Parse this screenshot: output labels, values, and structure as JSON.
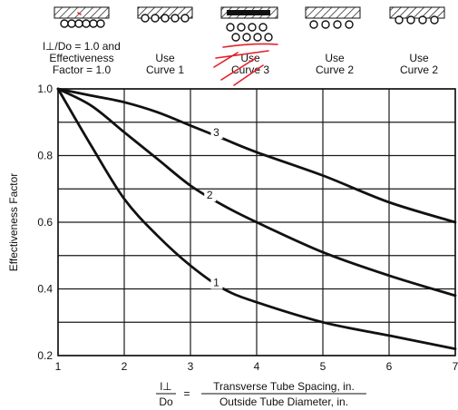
{
  "chart_data": {
    "type": "line",
    "xlabel_numerator": "l⊥",
    "xlabel_denominator": "Do",
    "xlabel_equals": "=",
    "xlabel_text_numerator": "Transverse Tube Spacing, in.",
    "xlabel_text_denominator": "Outside Tube Diameter, in.",
    "ylabel": "Effectiveness Factor",
    "xlim": [
      1,
      7
    ],
    "ylim": [
      0.2,
      1.0
    ],
    "x_ticks": [
      "1",
      "2",
      "3",
      "4",
      "5",
      "6",
      "7"
    ],
    "y_ticks": [
      "0.2",
      "0.4",
      "0.6",
      "0.8",
      "1.0"
    ],
    "grid": true,
    "series": [
      {
        "name": "1",
        "x": [
          1,
          1.5,
          2,
          2.5,
          3,
          3.5,
          4,
          5,
          6,
          7
        ],
        "y": [
          1.0,
          0.83,
          0.67,
          0.56,
          0.47,
          0.4,
          0.36,
          0.3,
          0.26,
          0.22
        ]
      },
      {
        "name": "2",
        "x": [
          1,
          1.5,
          2,
          2.5,
          3,
          3.5,
          4,
          5,
          6,
          7
        ],
        "y": [
          1.0,
          0.95,
          0.87,
          0.79,
          0.71,
          0.65,
          0.6,
          0.51,
          0.44,
          0.38
        ]
      },
      {
        "name": "3",
        "x": [
          1,
          1.5,
          2,
          2.5,
          3,
          3.5,
          4,
          5,
          6,
          7
        ],
        "y": [
          1.0,
          0.98,
          0.96,
          0.93,
          0.89,
          0.85,
          0.81,
          0.74,
          0.66,
          0.6
        ]
      }
    ]
  },
  "header": {
    "panels": [
      {
        "lines": [
          "l⊥/Do = 1.0 and",
          "Effectiveness",
          "Factor = 1.0"
        ]
      },
      {
        "lines": [
          "Use",
          "Curve 1"
        ]
      },
      {
        "lines": [
          "Use",
          "Curve 3"
        ]
      },
      {
        "lines": [
          "Use",
          "Curve 2"
        ]
      },
      {
        "lines": [
          "Use",
          "Curve 2"
        ]
      }
    ]
  }
}
